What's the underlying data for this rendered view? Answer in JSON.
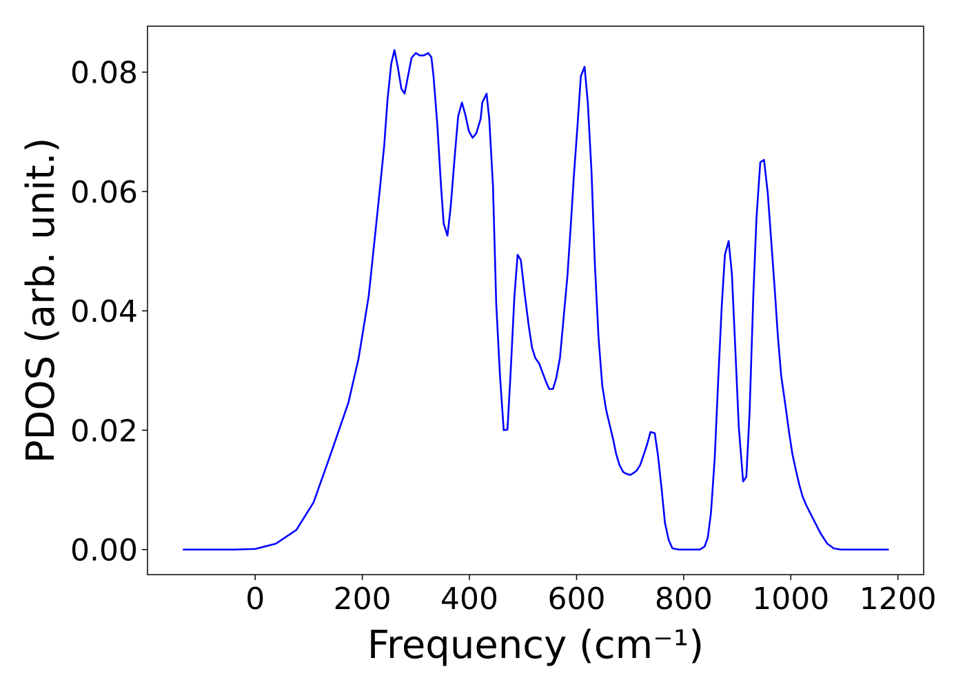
{
  "chart_data": {
    "type": "line",
    "xlabel": "Frequency (cm⁻¹)",
    "ylabel": "PDOS (arb. unit.)",
    "xlim": [
      -201,
      1248
    ],
    "ylim": [
      -0.0042,
      0.0877
    ],
    "xticks": [
      0,
      200,
      400,
      600,
      800,
      1000,
      1200
    ],
    "yticks": [
      {
        "value": 0,
        "label": "0.00"
      },
      {
        "value": 0.02,
        "label": "0.02"
      },
      {
        "value": 0.04,
        "label": "0.04"
      },
      {
        "value": 0.06,
        "label": "0.06"
      },
      {
        "value": 0.08,
        "label": "0.08"
      }
    ],
    "grid": false,
    "series": [
      {
        "color": "#0000ff",
        "x": [
          -135,
          -39,
          0,
          39,
          77,
          109,
          141,
          174,
          193,
          212,
          232,
          241,
          247,
          254,
          260,
          266,
          273,
          279,
          292,
          300,
          307,
          315,
          323,
          329,
          333,
          340,
          347,
          352,
          359,
          365,
          373,
          379,
          386,
          392,
          399,
          406,
          413,
          421,
          424,
          432,
          437,
          444,
          450,
          457,
          464,
          471,
          477,
          484,
          490,
          496,
          503,
          511,
          517,
          523,
          530,
          536,
          543,
          549,
          556,
          562,
          569,
          576,
          583,
          589,
          595,
          602,
          608,
          615,
          621,
          628,
          634,
          641,
          648,
          655,
          661,
          668,
          674,
          680,
          687,
          693,
          700,
          706,
          712,
          719,
          725,
          732,
          738,
          746,
          752,
          759,
          765,
          772,
          779,
          791,
          830,
          839,
          845,
          851,
          858,
          864,
          871,
          877,
          884,
          890,
          896,
          903,
          911,
          917,
          923,
          930,
          936,
          943,
          950,
          957,
          963,
          970,
          976,
          982,
          990,
          997,
          1003,
          1010,
          1016,
          1022,
          1029,
          1042,
          1055,
          1068,
          1080,
          1093,
          1183
        ],
        "values": [
          0,
          0,
          0.0001,
          0.001,
          0.0033,
          0.0079,
          0.016,
          0.0246,
          0.032,
          0.0425,
          0.0597,
          0.0678,
          0.0753,
          0.0814,
          0.0837,
          0.081,
          0.0772,
          0.0764,
          0.0824,
          0.0832,
          0.0828,
          0.0828,
          0.0832,
          0.0825,
          0.0793,
          0.0713,
          0.0609,
          0.0546,
          0.0526,
          0.0574,
          0.0664,
          0.0726,
          0.0749,
          0.073,
          0.0701,
          0.069,
          0.0698,
          0.0722,
          0.0749,
          0.0764,
          0.0722,
          0.0609,
          0.0413,
          0.0292,
          0.02,
          0.0201,
          0.0298,
          0.0425,
          0.0494,
          0.0485,
          0.043,
          0.0373,
          0.0338,
          0.0321,
          0.0312,
          0.0298,
          0.0281,
          0.0269,
          0.0269,
          0.0287,
          0.0321,
          0.039,
          0.0459,
          0.054,
          0.0626,
          0.0713,
          0.0793,
          0.0809,
          0.0749,
          0.0632,
          0.0482,
          0.0356,
          0.0275,
          0.0235,
          0.0212,
          0.0186,
          0.016,
          0.0142,
          0.013,
          0.0127,
          0.0125,
          0.0128,
          0.0132,
          0.0142,
          0.0158,
          0.0177,
          0.0197,
          0.0195,
          0.0158,
          0.01,
          0.0045,
          0.0016,
          0.0002,
          0,
          0,
          0.0005,
          0.002,
          0.0062,
          0.0154,
          0.0275,
          0.0407,
          0.0494,
          0.0517,
          0.0462,
          0.0344,
          0.0204,
          0.0114,
          0.0122,
          0.0229,
          0.0425,
          0.0557,
          0.0649,
          0.0653,
          0.0597,
          0.0523,
          0.0436,
          0.0356,
          0.0292,
          0.0241,
          0.0195,
          0.016,
          0.0131,
          0.0108,
          0.0089,
          0.0074,
          0.0051,
          0.0028,
          0.001,
          0.0002,
          0,
          0
        ]
      }
    ]
  }
}
